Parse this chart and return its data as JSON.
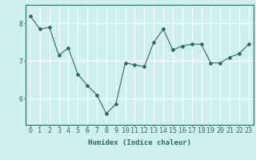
{
  "x": [
    0,
    1,
    2,
    3,
    4,
    5,
    6,
    7,
    8,
    9,
    10,
    11,
    12,
    13,
    14,
    15,
    16,
    17,
    18,
    19,
    20,
    21,
    22,
    23
  ],
  "y": [
    8.2,
    7.85,
    7.9,
    7.15,
    7.35,
    6.65,
    6.35,
    6.1,
    5.6,
    5.85,
    6.95,
    6.9,
    6.85,
    7.5,
    7.85,
    7.3,
    7.4,
    7.45,
    7.45,
    6.95,
    6.95,
    7.1,
    7.2,
    7.45
  ],
  "line_color": "#2d6b60",
  "marker": "D",
  "marker_size": 2,
  "bg_color": "#cff0f0",
  "grid_color": "#ffffff",
  "axis_color": "#2d6b60",
  "xlabel": "Humidex (Indice chaleur)",
  "xlim": [
    -0.5,
    23.5
  ],
  "ylim": [
    5.3,
    8.5
  ],
  "yticks": [
    6,
    7,
    8
  ],
  "xticks": [
    0,
    1,
    2,
    3,
    4,
    5,
    6,
    7,
    8,
    9,
    10,
    11,
    12,
    13,
    14,
    15,
    16,
    17,
    18,
    19,
    20,
    21,
    22,
    23
  ],
  "xlabel_fontsize": 6.5,
  "tick_fontsize": 6
}
